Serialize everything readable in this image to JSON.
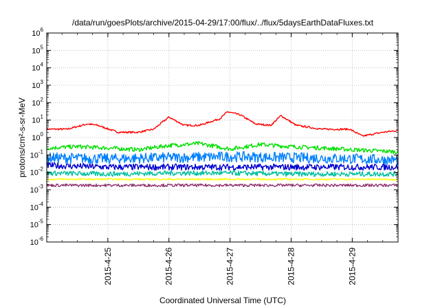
{
  "chart_data": {
    "type": "line",
    "title": "/data/run/goesPlots/archive/2015-04-29/17:00/flux/../flux/5daysEarthDataFluxes.txt",
    "xlabel": "Coordinated Universal Time (UTC)",
    "ylabel": "protons/cm²-s-sr-MeV",
    "yscale": "log",
    "ylim": [
      1e-06,
      1000000.0
    ],
    "xlim": [
      "2015-04-24 00:00",
      "2015-04-29 18:00"
    ],
    "x_ticks": [
      "2015-4-25",
      "2015-4-26",
      "2015-4-27",
      "2015-4-28",
      "2015-4-29"
    ],
    "y_ticks": [
      {
        "base": "10",
        "exp": "-6"
      },
      {
        "base": "10",
        "exp": "-5"
      },
      {
        "base": "10",
        "exp": "-4"
      },
      {
        "base": "10",
        "exp": "-3"
      },
      {
        "base": "10",
        "exp": "-2"
      },
      {
        "base": "10",
        "exp": "-1"
      },
      {
        "base": "10",
        "exp": "0"
      },
      {
        "base": "10",
        "exp": "1"
      },
      {
        "base": "10",
        "exp": "2"
      },
      {
        "base": "10",
        "exp": "3"
      },
      {
        "base": "10",
        "exp": "4"
      },
      {
        "base": "10",
        "exp": "5"
      },
      {
        "base": "10",
        "exp": "6"
      }
    ],
    "grid": true,
    "series": [
      {
        "color": "#ff0000",
        "x": [
          "2015-04-24 00:00",
          "2015-04-24 08:00",
          "2015-04-24 16:00",
          "2015-04-24 20:00",
          "2015-04-25 04:00",
          "2015-04-25 12:00",
          "2015-04-25 18:00",
          "2015-04-26 00:00",
          "2015-04-26 06:00",
          "2015-04-26 12:00",
          "2015-04-26 20:00",
          "2015-04-26 23:00",
          "2015-04-27 04:00",
          "2015-04-27 10:00",
          "2015-04-27 16:00",
          "2015-04-27 20:00",
          "2015-04-28 02:00",
          "2015-04-28 12:00",
          "2015-04-28 23:00",
          "2015-04-29 04:00",
          "2015-04-29 12:00",
          "2015-04-29 18:00"
        ],
        "y": [
          3,
          3,
          6,
          5,
          2,
          2,
          3,
          15,
          5,
          5,
          12,
          30,
          20,
          6,
          5,
          18,
          5,
          3,
          3,
          1.2,
          2,
          2.5
        ]
      },
      {
        "color": "#00e000",
        "x": [
          "2015-04-24 00:00",
          "2015-04-24 12:00",
          "2015-04-25 00:00",
          "2015-04-25 12:00",
          "2015-04-26 00:00",
          "2015-04-26 12:00",
          "2015-04-27 00:00",
          "2015-04-27 12:00",
          "2015-04-28 00:00",
          "2015-04-28 12:00",
          "2015-04-29 00:00",
          "2015-04-29 18:00"
        ],
        "y": [
          0.25,
          0.3,
          0.25,
          0.2,
          0.35,
          0.45,
          0.22,
          0.4,
          0.3,
          0.25,
          0.2,
          0.15
        ]
      },
      {
        "color": "#0080ff",
        "x": [
          "2015-04-24 00:00",
          "2015-04-25 00:00",
          "2015-04-26 00:00",
          "2015-04-27 00:00",
          "2015-04-28 00:00",
          "2015-04-29 00:00",
          "2015-04-29 18:00"
        ],
        "y": [
          0.07,
          0.06,
          0.07,
          0.08,
          0.07,
          0.06,
          0.05
        ]
      },
      {
        "color": "#0000d0",
        "x": [
          "2015-04-24 00:00",
          "2015-04-25 00:00",
          "2015-04-26 00:00",
          "2015-04-27 00:00",
          "2015-04-28 00:00",
          "2015-04-29 00:00",
          "2015-04-29 18:00"
        ],
        "y": [
          0.025,
          0.02,
          0.02,
          0.02,
          0.02,
          0.02,
          0.02
        ]
      },
      {
        "color": "#00c0a0",
        "x": [
          "2015-04-24 00:00",
          "2015-04-25 00:00",
          "2015-04-26 00:00",
          "2015-04-27 00:00",
          "2015-04-28 00:00",
          "2015-04-29 00:00",
          "2015-04-29 18:00"
        ],
        "y": [
          0.009,
          0.008,
          0.009,
          0.009,
          0.008,
          0.008,
          0.008
        ]
      },
      {
        "color": "#ffff00",
        "x": [
          "2015-04-24 00:00",
          "2015-04-25 00:00",
          "2015-04-26 00:00",
          "2015-04-27 00:00",
          "2015-04-28 00:00",
          "2015-04-29 00:00",
          "2015-04-29 18:00"
        ],
        "y": [
          0.004,
          0.004,
          0.004,
          0.004,
          0.004,
          0.004,
          0.004
        ]
      },
      {
        "color": "#903070",
        "x": [
          "2015-04-24 00:00",
          "2015-04-25 00:00",
          "2015-04-26 00:00",
          "2015-04-27 00:00",
          "2015-04-28 00:00",
          "2015-04-29 00:00",
          "2015-04-29 18:00"
        ],
        "y": [
          0.0018,
          0.0018,
          0.0018,
          0.0018,
          0.0018,
          0.0018,
          0.0018
        ]
      }
    ]
  }
}
